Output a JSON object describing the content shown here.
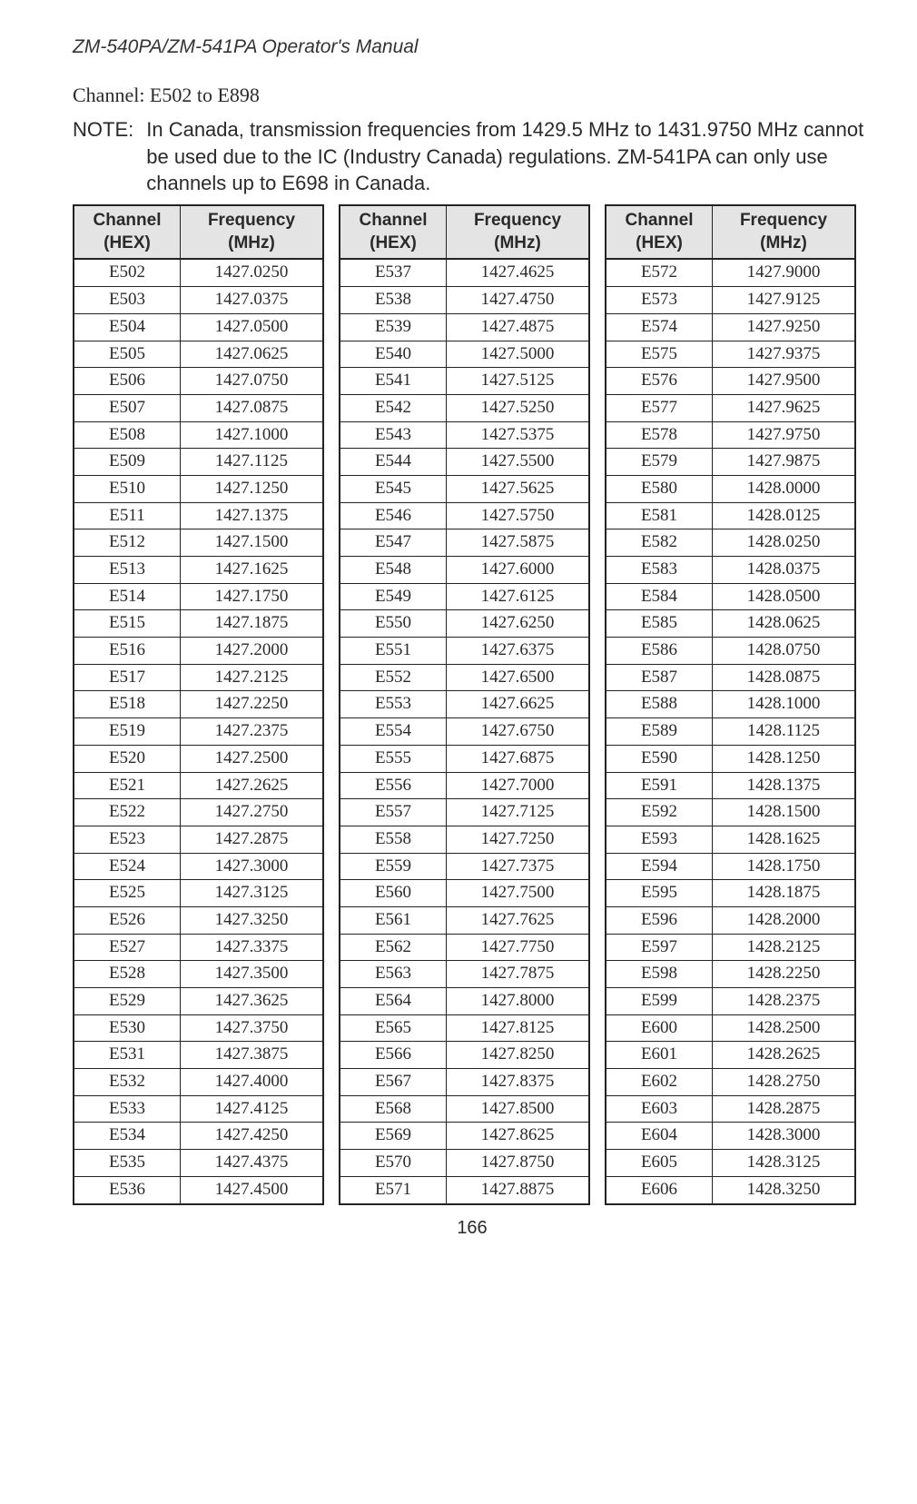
{
  "header_title": "ZM-540PA/ZM-541PA  Operator's Manual",
  "subtitle": "Channel: E502 to E898",
  "note_label": "NOTE:",
  "note_body": "In Canada, transmission frequencies from 1429.5 MHz to 1431.9750 MHz cannot be used due to the IC (Industry Canada) regulations. ZM-541PA can only use channels up to E698 in Canada.",
  "col_headers": {
    "channel": "Channel (HEX)",
    "frequency": "Frequency (MHz)"
  },
  "page_number": "166",
  "tables": [
    [
      [
        "E502",
        "1427.0250"
      ],
      [
        "E503",
        "1427.0375"
      ],
      [
        "E504",
        "1427.0500"
      ],
      [
        "E505",
        "1427.0625"
      ],
      [
        "E506",
        "1427.0750"
      ],
      [
        "E507",
        "1427.0875"
      ],
      [
        "E508",
        "1427.1000"
      ],
      [
        "E509",
        "1427.1125"
      ],
      [
        "E510",
        "1427.1250"
      ],
      [
        "E511",
        "1427.1375"
      ],
      [
        "E512",
        "1427.1500"
      ],
      [
        "E513",
        "1427.1625"
      ],
      [
        "E514",
        "1427.1750"
      ],
      [
        "E515",
        "1427.1875"
      ],
      [
        "E516",
        "1427.2000"
      ],
      [
        "E517",
        "1427.2125"
      ],
      [
        "E518",
        "1427.2250"
      ],
      [
        "E519",
        "1427.2375"
      ],
      [
        "E520",
        "1427.2500"
      ],
      [
        "E521",
        "1427.2625"
      ],
      [
        "E522",
        "1427.2750"
      ],
      [
        "E523",
        "1427.2875"
      ],
      [
        "E524",
        "1427.3000"
      ],
      [
        "E525",
        "1427.3125"
      ],
      [
        "E526",
        "1427.3250"
      ],
      [
        "E527",
        "1427.3375"
      ],
      [
        "E528",
        "1427.3500"
      ],
      [
        "E529",
        "1427.3625"
      ],
      [
        "E530",
        "1427.3750"
      ],
      [
        "E531",
        "1427.3875"
      ],
      [
        "E532",
        "1427.4000"
      ],
      [
        "E533",
        "1427.4125"
      ],
      [
        "E534",
        "1427.4250"
      ],
      [
        "E535",
        "1427.4375"
      ],
      [
        "E536",
        "1427.4500"
      ]
    ],
    [
      [
        "E537",
        "1427.4625"
      ],
      [
        "E538",
        "1427.4750"
      ],
      [
        "E539",
        "1427.4875"
      ],
      [
        "E540",
        "1427.5000"
      ],
      [
        "E541",
        "1427.5125"
      ],
      [
        "E542",
        "1427.5250"
      ],
      [
        "E543",
        "1427.5375"
      ],
      [
        "E544",
        "1427.5500"
      ],
      [
        "E545",
        "1427.5625"
      ],
      [
        "E546",
        "1427.5750"
      ],
      [
        "E547",
        "1427.5875"
      ],
      [
        "E548",
        "1427.6000"
      ],
      [
        "E549",
        "1427.6125"
      ],
      [
        "E550",
        "1427.6250"
      ],
      [
        "E551",
        "1427.6375"
      ],
      [
        "E552",
        "1427.6500"
      ],
      [
        "E553",
        "1427.6625"
      ],
      [
        "E554",
        "1427.6750"
      ],
      [
        "E555",
        "1427.6875"
      ],
      [
        "E556",
        "1427.7000"
      ],
      [
        "E557",
        "1427.7125"
      ],
      [
        "E558",
        "1427.7250"
      ],
      [
        "E559",
        "1427.7375"
      ],
      [
        "E560",
        "1427.7500"
      ],
      [
        "E561",
        "1427.7625"
      ],
      [
        "E562",
        "1427.7750"
      ],
      [
        "E563",
        "1427.7875"
      ],
      [
        "E564",
        "1427.8000"
      ],
      [
        "E565",
        "1427.8125"
      ],
      [
        "E566",
        "1427.8250"
      ],
      [
        "E567",
        "1427.8375"
      ],
      [
        "E568",
        "1427.8500"
      ],
      [
        "E569",
        "1427.8625"
      ],
      [
        "E570",
        "1427.8750"
      ],
      [
        "E571",
        "1427.8875"
      ]
    ],
    [
      [
        "E572",
        "1427.9000"
      ],
      [
        "E573",
        "1427.9125"
      ],
      [
        "E574",
        "1427.9250"
      ],
      [
        "E575",
        "1427.9375"
      ],
      [
        "E576",
        "1427.9500"
      ],
      [
        "E577",
        "1427.9625"
      ],
      [
        "E578",
        "1427.9750"
      ],
      [
        "E579",
        "1427.9875"
      ],
      [
        "E580",
        "1428.0000"
      ],
      [
        "E581",
        "1428.0125"
      ],
      [
        "E582",
        "1428.0250"
      ],
      [
        "E583",
        "1428.0375"
      ],
      [
        "E584",
        "1428.0500"
      ],
      [
        "E585",
        "1428.0625"
      ],
      [
        "E586",
        "1428.0750"
      ],
      [
        "E587",
        "1428.0875"
      ],
      [
        "E588",
        "1428.1000"
      ],
      [
        "E589",
        "1428.1125"
      ],
      [
        "E590",
        "1428.1250"
      ],
      [
        "E591",
        "1428.1375"
      ],
      [
        "E592",
        "1428.1500"
      ],
      [
        "E593",
        "1428.1625"
      ],
      [
        "E594",
        "1428.1750"
      ],
      [
        "E595",
        "1428.1875"
      ],
      [
        "E596",
        "1428.2000"
      ],
      [
        "E597",
        "1428.2125"
      ],
      [
        "E598",
        "1428.2250"
      ],
      [
        "E599",
        "1428.2375"
      ],
      [
        "E600",
        "1428.2500"
      ],
      [
        "E601",
        "1428.2625"
      ],
      [
        "E602",
        "1428.2750"
      ],
      [
        "E603",
        "1428.2875"
      ],
      [
        "E604",
        "1428.3000"
      ],
      [
        "E605",
        "1428.3125"
      ],
      [
        "E606",
        "1428.3250"
      ]
    ]
  ]
}
